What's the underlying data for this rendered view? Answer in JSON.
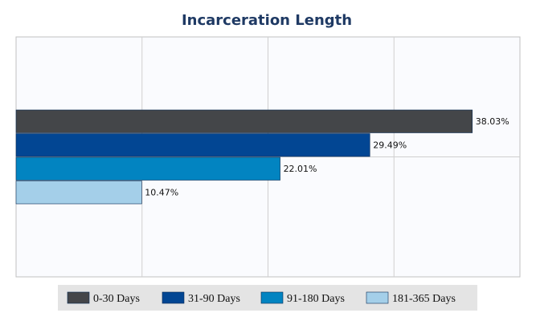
{
  "chart_data": {
    "type": "bar",
    "orientation": "horizontal",
    "title": "Incarceration Length",
    "xlabel": "",
    "ylabel": "",
    "xlim": [
      0,
      42
    ],
    "grid": true,
    "legend_position": "bottom",
    "series": [
      {
        "name": "0-30 Days",
        "value": 38.03,
        "label": "38.03%",
        "color": "#444649"
      },
      {
        "name": "31-90 Days",
        "value": 29.49,
        "label": "29.49%",
        "color": "#024693"
      },
      {
        "name": "91-180 Days",
        "value": 22.01,
        "label": "22.01%",
        "color": "#0284c1"
      },
      {
        "name": "181-365 Days",
        "value": 10.47,
        "label": "10.47%",
        "color": "#a4cfe9"
      }
    ]
  }
}
